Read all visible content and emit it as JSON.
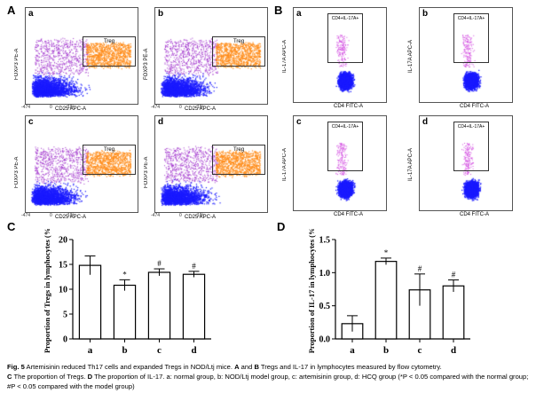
{
  "panel_labels": {
    "A": "A",
    "B": "B",
    "C": "C",
    "D": "D"
  },
  "flow_A": {
    "gate_label": "Treg",
    "x_label": "CD25 APC-A",
    "y_label": "FOXP3 PE-A",
    "tick_neg": "-474",
    "tick_zero": "0",
    "tick_10_3": "10³",
    "subplots": [
      "a",
      "b",
      "c",
      "d"
    ]
  },
  "flow_B": {
    "gate_label": "CD4+IL-17A+",
    "x_label": "CD4 FITC-A",
    "y_label": "IL-17A APC-A",
    "subplots": [
      "a",
      "b",
      "c",
      "d"
    ]
  },
  "chart_data": [
    {
      "type": "bar",
      "panel": "C",
      "categories": [
        "a",
        "b",
        "c",
        "d"
      ],
      "values": [
        14.8,
        10.8,
        13.4,
        13.0
      ],
      "errors": [
        1.9,
        1.1,
        0.7,
        0.6
      ],
      "annotations": [
        "",
        "*",
        "#",
        "#"
      ],
      "ylabel": "Proportion of Tregs in lymphocytes (%)",
      "ylim": [
        0,
        20
      ],
      "yticks": [
        "0",
        "5",
        "10",
        "15",
        "20"
      ],
      "bar_color": "#ffffff"
    },
    {
      "type": "bar",
      "panel": "D",
      "categories": [
        "a",
        "b",
        "c",
        "d"
      ],
      "values": [
        0.23,
        1.17,
        0.74,
        0.8
      ],
      "errors": [
        0.12,
        0.05,
        0.24,
        0.09
      ],
      "annotations": [
        "",
        "*",
        "#",
        "#"
      ],
      "ylabel": "Proportion of IL-17 in lymphocytes (%)",
      "ylim": [
        0,
        1.5
      ],
      "yticks": [
        "0.0",
        "0.5",
        "1.0",
        "1.5"
      ],
      "bar_color": "#ffffff"
    }
  ],
  "caption": {
    "fig": "Fig. 5",
    "text1": " Artemisinin reduced Th17 cells and expanded Tregs in NOD/Ltj mice. ",
    "a_b": "A",
    "and": " and ",
    "b_b": "B",
    "text2": " Tregs and IL-17 in lymphocytes measured by flow cytometry.",
    "c_b": "C",
    "text3": " The proportion of Tregs. ",
    "d_b": "D",
    "text4": " The proportion of IL-17. a: normal group, b: NOD/Ltj model group, c: artemisinin group, d: HCQ group (*P < 0.05 compared with the normal group; #P < 0.05 compared with the model group)"
  }
}
